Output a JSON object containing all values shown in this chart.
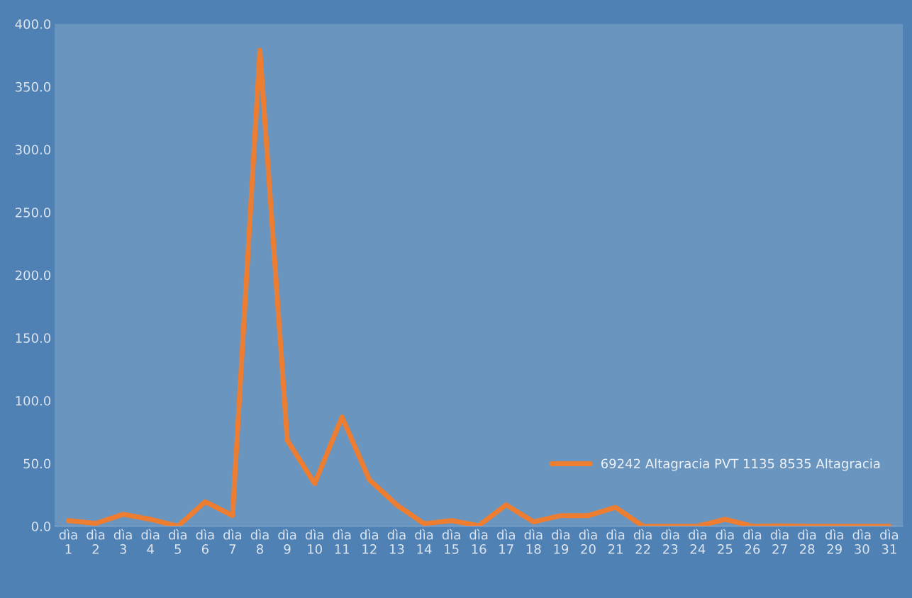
{
  "chart_data": {
    "type": "line",
    "categories": [
      "dìa\n1",
      "dìa\n2",
      "dìa\n3",
      "dìa\n4",
      "dìa\n5",
      "dìa\n6",
      "dìa\n7",
      "dìa\n8",
      "dìa\n9",
      "dìa\n10",
      "dìa\n11",
      "dìa\n12",
      "dìa\n13",
      "dìa\n14",
      "dìa\n15",
      "dìa\n16",
      "dìa\n17",
      "dìa\n18",
      "dìa\n19",
      "dìa\n20",
      "dìa\n21",
      "dìa\n22",
      "dìa\n23",
      "dìa\n24",
      "dìa\n25",
      "dìa\n26",
      "dìa\n27",
      "dìa\n28",
      "dìa\n29",
      "dìa\n30",
      "dìa\n31"
    ],
    "series": [
      {
        "name": "69242 Altagracia PVT 1135 8535 Altagracia",
        "color": "#ed7d31",
        "values": [
          4.5,
          2.2,
          9.5,
          5.5,
          0,
          19.5,
          8.5,
          379,
          68.5,
          34,
          87,
          37,
          17,
          2,
          4.5,
          0.5,
          17,
          3.5,
          8.5,
          8.5,
          15,
          0,
          0,
          0,
          5.5,
          0,
          0.3,
          0,
          0,
          0,
          0
        ]
      }
    ],
    "ylim": [
      0,
      400
    ],
    "yticks": [
      {
        "value": 0,
        "label": "0.0"
      },
      {
        "value": 50,
        "label": "50.0"
      },
      {
        "value": 100,
        "label": "100.0"
      },
      {
        "value": 150,
        "label": "150.0"
      },
      {
        "value": 200,
        "label": "200.0"
      },
      {
        "value": 250,
        "label": "250.0"
      },
      {
        "value": 300,
        "label": "300.0"
      },
      {
        "value": 350,
        "label": "350.0"
      },
      {
        "value": 400,
        "label": "400.0"
      }
    ],
    "grid": false,
    "legend": "bottom right",
    "marker": "none",
    "line_style": "solid"
  }
}
